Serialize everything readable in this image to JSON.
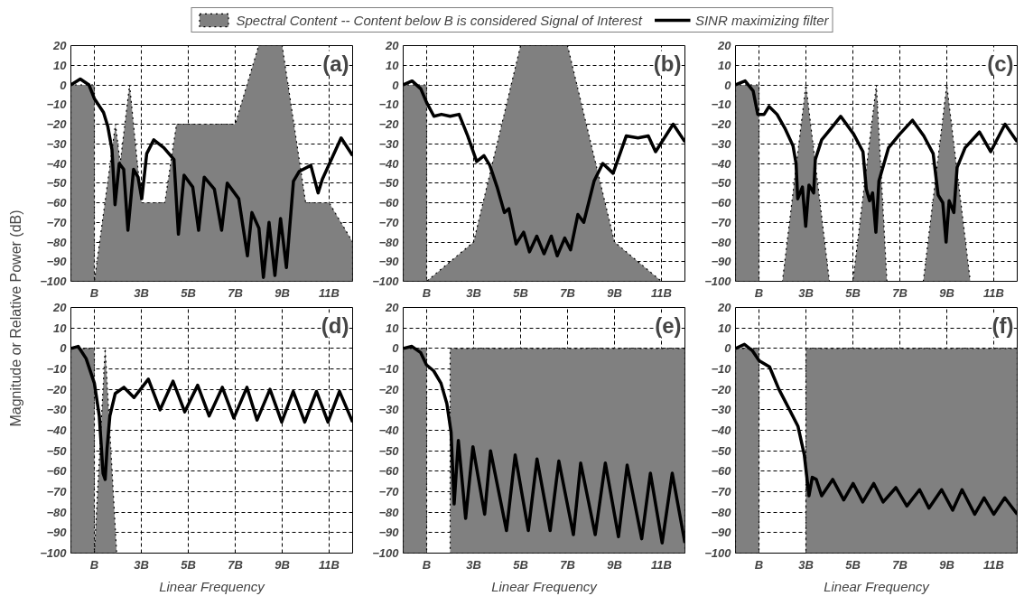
{
  "chart_data": [
    {
      "type": "area",
      "annotations": [
        "(a)"
      ],
      "ylabel": "Magnitude or Relative Power (dB)",
      "legend": "top",
      "grid": true,
      "xlim": [
        0,
        12
      ],
      "ylim": [
        -100,
        20
      ],
      "xticks": [
        {
          "value": 1,
          "label": "B"
        },
        {
          "value": 3,
          "label": "3B"
        },
        {
          "value": 5,
          "label": "5B"
        },
        {
          "value": 7,
          "label": "7B"
        },
        {
          "value": 9,
          "label": "9B"
        },
        {
          "value": 11,
          "label": "11B"
        }
      ],
      "yticks": [
        -100,
        -90,
        -80,
        -70,
        -60,
        -50,
        -40,
        -30,
        -20,
        -10,
        0,
        10,
        20
      ],
      "series": [
        {
          "name": "Spectral Content -- Content below B is considered Signal of Interest",
          "color": "#808080",
          "line_style": "dotted",
          "x": [
            0,
            0,
            1,
            1,
            1.9,
            2.1,
            2.5,
            3,
            4,
            4.5,
            7,
            8,
            9,
            10,
            11,
            12,
            12
          ],
          "values": [
            -100,
            0,
            0,
            -100,
            -20,
            -40,
            0,
            -60,
            -60,
            -20,
            -20,
            20,
            20,
            -60,
            -60,
            -80,
            -100
          ]
        },
        {
          "name": "SINR maximizing filter",
          "type": "line",
          "color": "#000000",
          "line_style": "solid",
          "x": [
            0,
            0.4,
            0.77,
            1.0,
            1.39,
            1.57,
            1.75,
            1.88,
            2.06,
            2.25,
            2.43,
            2.67,
            2.86,
            3.02,
            3.23,
            3.53,
            3.96,
            4.39,
            4.58,
            4.82,
            5.19,
            5.44,
            5.68,
            6.11,
            6.42,
            6.66,
            7.15,
            7.52,
            7.71,
            8.01,
            8.2,
            8.44,
            8.69,
            8.93,
            9.18,
            9.48,
            9.73,
            10.22,
            10.53,
            10.71,
            11.51,
            12
          ],
          "values": [
            0,
            3,
            0,
            -7,
            -14,
            -21,
            -33,
            -61,
            -40,
            -43,
            -74,
            -43,
            -47,
            -58,
            -35,
            -28,
            -32,
            -38,
            -76,
            -46,
            -52,
            -74,
            -47,
            -53,
            -74,
            -50,
            -58,
            -87,
            -65,
            -73,
            -98,
            -70,
            -97,
            -68,
            -93,
            -49,
            -44,
            -41,
            -55,
            -48,
            -27,
            -36
          ]
        }
      ]
    },
    {
      "type": "area",
      "annotations": [
        "(b)"
      ],
      "grid": true,
      "xlim": [
        0,
        12
      ],
      "ylim": [
        -100,
        20
      ],
      "xticks": [
        {
          "value": 1,
          "label": "B"
        },
        {
          "value": 3,
          "label": "3B"
        },
        {
          "value": 5,
          "label": "5B"
        },
        {
          "value": 7,
          "label": "7B"
        },
        {
          "value": 9,
          "label": "9B"
        },
        {
          "value": 11,
          "label": "11B"
        }
      ],
      "yticks": [
        -100,
        -90,
        -80,
        -70,
        -60,
        -50,
        -40,
        -30,
        -20,
        -10,
        0,
        10,
        20
      ],
      "series": [
        {
          "color": "#808080",
          "line_style": "dotted",
          "x": [
            0,
            0,
            1,
            1,
            3,
            5,
            7,
            9,
            11,
            12
          ],
          "values": [
            -100,
            0,
            0,
            -100,
            -80,
            20,
            20,
            -80,
            -100,
            -100
          ]
        },
        {
          "type": "line",
          "color": "#000000",
          "line_style": "solid",
          "x": [
            0,
            0.38,
            0.75,
            1,
            1.31,
            1.63,
            2,
            2.38,
            2.75,
            3.13,
            3.44,
            3.69,
            4,
            4.31,
            4.5,
            4.81,
            5.13,
            5.38,
            5.69,
            6,
            6.31,
            6.56,
            6.88,
            7.13,
            7.44,
            7.69,
            8.13,
            8.5,
            8.94,
            9.5,
            10,
            10.44,
            10.75,
            11.5,
            12
          ],
          "values": [
            0,
            2,
            -2,
            -9,
            -16,
            -15,
            -16,
            -15,
            -26,
            -39,
            -36,
            -41,
            -52,
            -65,
            -63,
            -81,
            -75,
            -85,
            -77,
            -86,
            -77,
            -87,
            -78,
            -84,
            -66,
            -70,
            -49,
            -40,
            -45,
            -26,
            -27,
            -26,
            -34,
            -20,
            -29
          ]
        }
      ]
    },
    {
      "type": "area",
      "annotations": [
        "(c)"
      ],
      "grid": true,
      "xlim": [
        0,
        12
      ],
      "ylim": [
        -100,
        20
      ],
      "xticks": [
        {
          "value": 1,
          "label": "B"
        },
        {
          "value": 3,
          "label": "3B"
        },
        {
          "value": 5,
          "label": "5B"
        },
        {
          "value": 7,
          "label": "7B"
        },
        {
          "value": 9,
          "label": "9B"
        },
        {
          "value": 11,
          "label": "11B"
        }
      ],
      "yticks": [
        -100,
        -90,
        -80,
        -70,
        -60,
        -50,
        -40,
        -30,
        -20,
        -10,
        0,
        10,
        20
      ],
      "series": [
        {
          "color": "#808080",
          "line_style": "dotted",
          "x": [
            0,
            0,
            1,
            1,
            2,
            3,
            4,
            5,
            6,
            6.45,
            8,
            9,
            10,
            12
          ],
          "values": [
            -100,
            0,
            0,
            -100,
            -100,
            0,
            -100,
            -100,
            0,
            -100,
            -100,
            0,
            -100,
            -100
          ]
        },
        {
          "type": "line",
          "color": "#000000",
          "line_style": "solid",
          "x": [
            0,
            0.41,
            0.75,
            0.95,
            1.22,
            1.43,
            1.77,
            2.1,
            2.45,
            2.58,
            2.65,
            2.85,
            2.99,
            3.13,
            3.33,
            3.4,
            3.67,
            4.08,
            4.48,
            5.03,
            5.43,
            5.57,
            5.71,
            5.84,
            5.98,
            6.11,
            6.52,
            7,
            7.54,
            8.02,
            8.42,
            8.63,
            8.83,
            8.97,
            9.1,
            9.3,
            9.44,
            9.78,
            10.39,
            10.87,
            11.48,
            12
          ],
          "values": [
            0,
            2,
            -3,
            -15,
            -15,
            -11,
            -15,
            -22,
            -31,
            -40,
            -58,
            -52,
            -72,
            -51,
            -55,
            -38,
            -28,
            -22,
            -16,
            -25,
            -34,
            -53,
            -59,
            -55,
            -75,
            -49,
            -32,
            -25,
            -18,
            -26,
            -35,
            -56,
            -60,
            -80,
            -59,
            -65,
            -42,
            -32,
            -24,
            -34,
            -20,
            -29
          ]
        }
      ]
    },
    {
      "type": "area",
      "annotations": [
        "(d)"
      ],
      "xlabel": "Linear Frequency",
      "grid": true,
      "xlim": [
        0,
        12
      ],
      "ylim": [
        -100,
        20
      ],
      "xticks": [
        {
          "value": 1,
          "label": "B"
        },
        {
          "value": 3,
          "label": "3B"
        },
        {
          "value": 5,
          "label": "5B"
        },
        {
          "value": 7,
          "label": "7B"
        },
        {
          "value": 9,
          "label": "9B"
        },
        {
          "value": 11,
          "label": "11B"
        }
      ],
      "yticks": [
        -100,
        -90,
        -80,
        -70,
        -60,
        -50,
        -40,
        -30,
        -20,
        -10,
        0,
        10,
        20
      ],
      "series": [
        {
          "color": "#808080",
          "line_style": "dotted",
          "x": [
            0,
            0,
            1,
            1,
            1.46,
            1.95
          ],
          "values": [
            -100,
            0,
            0,
            -100,
            0,
            -100
          ]
        },
        {
          "type": "line",
          "color": "#000000",
          "line_style": "solid",
          "x": [
            0,
            0.31,
            0.65,
            1,
            1.21,
            1.37,
            1.46,
            1.54,
            1.66,
            1.89,
            2.26,
            2.69,
            3.3,
            3.8,
            4.35,
            4.85,
            5.4,
            5.89,
            6.45,
            6.94,
            7.5,
            7.93,
            8.48,
            8.98,
            9.47,
            9.96,
            10.46,
            10.95,
            11.44,
            12
          ],
          "values": [
            0,
            1,
            -5,
            -17,
            -33,
            -61,
            -64,
            -49,
            -33,
            -22,
            -19,
            -24,
            -15,
            -30,
            -16,
            -31,
            -18,
            -33,
            -19,
            -34,
            -19,
            -35,
            -20,
            -36,
            -21,
            -36,
            -21,
            -36,
            -21,
            -36
          ]
        }
      ]
    },
    {
      "type": "area",
      "annotations": [
        "(e)"
      ],
      "xlabel": "Linear Frequency",
      "grid": true,
      "xlim": [
        0,
        12
      ],
      "ylim": [
        -100,
        20
      ],
      "xticks": [
        {
          "value": 1,
          "label": "B"
        },
        {
          "value": 3,
          "label": "3B"
        },
        {
          "value": 5,
          "label": "5B"
        },
        {
          "value": 7,
          "label": "7B"
        },
        {
          "value": 9,
          "label": "9B"
        },
        {
          "value": 11,
          "label": "11B"
        }
      ],
      "yticks": [
        -100,
        -90,
        -80,
        -70,
        -60,
        -50,
        -40,
        -30,
        -20,
        -10,
        0,
        10,
        20
      ],
      "series": [
        {
          "color": "#808080",
          "line_style": "dotted",
          "x": [
            0,
            0,
            1,
            1,
            2,
            2,
            12,
            12
          ],
          "values": [
            -100,
            0,
            0,
            -100,
            -100,
            0,
            0,
            -100
          ]
        },
        {
          "type": "line",
          "color": "#000000",
          "line_style": "solid",
          "x": [
            0,
            0.37,
            0.74,
            0.99,
            1.3,
            1.61,
            1.86,
            2.04,
            2.17,
            2.35,
            2.66,
            2.97,
            3.47,
            3.72,
            4.4,
            4.77,
            5.33,
            5.7,
            6.26,
            6.63,
            7.25,
            7.56,
            8.18,
            8.61,
            9.17,
            9.54,
            10.16,
            10.53,
            11.03,
            11.46,
            12
          ],
          "values": [
            0,
            1,
            -2,
            -8,
            -11,
            -17,
            -27,
            -41,
            -76,
            -45,
            -83,
            -48,
            -81,
            -50,
            -89,
            -52,
            -89,
            -54,
            -89,
            -55,
            -91,
            -56,
            -91,
            -56,
            -92,
            -57,
            -93,
            -61,
            -95,
            -61,
            -95
          ]
        }
      ]
    },
    {
      "type": "area",
      "annotations": [
        "(f)"
      ],
      "xlabel": "Linear Frequency",
      "grid": true,
      "xlim": [
        0,
        12
      ],
      "ylim": [
        -100,
        20
      ],
      "xticks": [
        {
          "value": 1,
          "label": "B"
        },
        {
          "value": 3,
          "label": "3B"
        },
        {
          "value": 5,
          "label": "5B"
        },
        {
          "value": 7,
          "label": "7B"
        },
        {
          "value": 9,
          "label": "9B"
        },
        {
          "value": 11,
          "label": "11B"
        }
      ],
      "yticks": [
        -100,
        -90,
        -80,
        -70,
        -60,
        -50,
        -40,
        -30,
        -20,
        -10,
        0,
        10,
        20
      ],
      "series": [
        {
          "color": "#808080",
          "line_style": "dotted",
          "x": [
            0,
            0,
            1,
            1,
            3,
            3,
            12,
            12
          ],
          "values": [
            -100,
            0,
            0,
            -100,
            -100,
            0,
            0,
            -100
          ]
        },
        {
          "type": "line",
          "color": "#000000",
          "line_style": "solid",
          "x": [
            0,
            0.38,
            0.71,
            1.01,
            1.45,
            1.85,
            2.26,
            2.66,
            2.93,
            3.13,
            3.27,
            3.44,
            3.67,
            4.14,
            4.61,
            5.01,
            5.42,
            5.89,
            6.29,
            6.83,
            7.3,
            7.84,
            8.24,
            8.78,
            9.25,
            9.65,
            10.19,
            10.59,
            11,
            11.47,
            12
          ],
          "values": [
            0,
            2,
            -1,
            -6,
            -9,
            -20,
            -29,
            -38,
            -52,
            -72,
            -63,
            -64,
            -72,
            -64,
            -74,
            -66,
            -75,
            -66,
            -75,
            -68,
            -77,
            -69,
            -78,
            -69,
            -79,
            -69,
            -81,
            -73,
            -81,
            -73,
            -81
          ]
        }
      ]
    }
  ]
}
